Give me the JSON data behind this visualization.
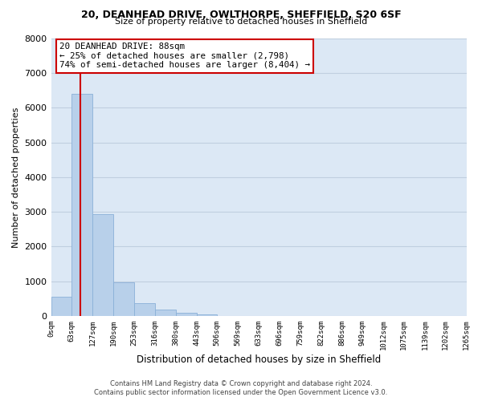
{
  "title_line1": "20, DEANHEAD DRIVE, OWLTHORPE, SHEFFIELD, S20 6SF",
  "title_line2": "Size of property relative to detached houses in Sheffield",
  "xlabel": "Distribution of detached houses by size in Sheffield",
  "ylabel": "Number of detached properties",
  "bin_edges": [
    0,
    63,
    127,
    190,
    253,
    316,
    380,
    443,
    506,
    569,
    633,
    696,
    759,
    822,
    886,
    949,
    1012,
    1075,
    1139,
    1202,
    1265
  ],
  "bin_labels": [
    "0sqm",
    "63sqm",
    "127sqm",
    "190sqm",
    "253sqm",
    "316sqm",
    "380sqm",
    "443sqm",
    "506sqm",
    "569sqm",
    "633sqm",
    "696sqm",
    "759sqm",
    "822sqm",
    "886sqm",
    "949sqm",
    "1012sqm",
    "1075sqm",
    "1139sqm",
    "1202sqm",
    "1265sqm"
  ],
  "bar_heights": [
    560,
    6400,
    2930,
    980,
    380,
    175,
    90,
    50,
    0,
    0,
    0,
    0,
    0,
    0,
    0,
    0,
    0,
    0,
    0,
    0
  ],
  "bar_color": "#b8d0ea",
  "bar_edge_color": "#8ab0d8",
  "property_value": 88,
  "marker_line_color": "#cc0000",
  "annotation_text_line1": "20 DEANHEAD DRIVE: 88sqm",
  "annotation_text_line2": "← 25% of detached houses are smaller (2,798)",
  "annotation_text_line3": "74% of semi-detached houses are larger (8,404) →",
  "ylim": [
    0,
    8000
  ],
  "yticks": [
    0,
    1000,
    2000,
    3000,
    4000,
    5000,
    6000,
    7000,
    8000
  ],
  "plot_bg_color": "#dce8f5",
  "background_color": "#ffffff",
  "grid_color": "#c0cfe0",
  "footer_line1": "Contains HM Land Registry data © Crown copyright and database right 2024.",
  "footer_line2": "Contains public sector information licensed under the Open Government Licence v3.0."
}
